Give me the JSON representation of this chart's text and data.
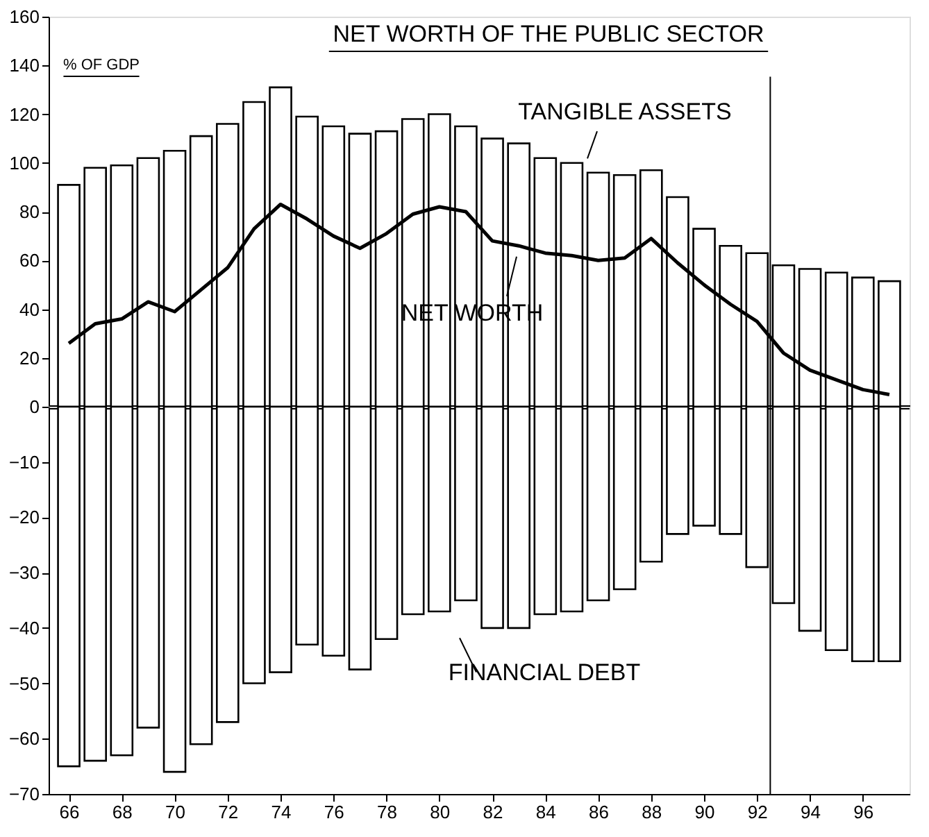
{
  "chart_data": [
    {
      "type": "bar",
      "title": "NET WORTH OF THE PUBLIC SECTOR",
      "ylabel": "% OF GDP",
      "x": [
        66,
        67,
        68,
        69,
        70,
        71,
        72,
        73,
        74,
        75,
        76,
        77,
        78,
        79,
        80,
        81,
        82,
        83,
        84,
        85,
        86,
        87,
        88,
        89,
        90,
        91,
        92,
        93,
        94,
        95,
        96,
        97
      ],
      "series": [
        {
          "name": "TANGIBLE ASSETS",
          "color": "#ffffff",
          "values": [
            91,
            98,
            99,
            102,
            105,
            111,
            116,
            125,
            131,
            119,
            115,
            112,
            113,
            118,
            120,
            115,
            110,
            108,
            102,
            100,
            96,
            95,
            97,
            86,
            73,
            66,
            63,
            58,
            56.5,
            55,
            53,
            51.5
          ]
        },
        {
          "name": "NET WORTH",
          "type": "line",
          "color": "#000000",
          "values": [
            26,
            34,
            36,
            43,
            39,
            48,
            57,
            73,
            83,
            77,
            70,
            65,
            71,
            79,
            82,
            80,
            68,
            66,
            63,
            62,
            60,
            61,
            69,
            59,
            50,
            42,
            35,
            22,
            15,
            11,
            7,
            5
          ]
        }
      ],
      "xlim": [
        65.5,
        97.5
      ],
      "ylim": [
        0,
        160
      ],
      "yticks": [
        160,
        140,
        120,
        100,
        80,
        60,
        40,
        20,
        0
      ],
      "ref_lines": [
        {
          "axis": "x",
          "value": 92.5
        }
      ],
      "tick_labels": "y",
      "grid": false
    },
    {
      "type": "bar",
      "x": [
        66,
        67,
        68,
        69,
        70,
        71,
        72,
        73,
        74,
        75,
        76,
        77,
        78,
        79,
        80,
        81,
        82,
        83,
        84,
        85,
        86,
        87,
        88,
        89,
        90,
        91,
        92,
        93,
        94,
        95,
        96,
        97
      ],
      "series": [
        {
          "name": "FINANCIAL DEBT",
          "color": "#ffffff",
          "values": [
            -65,
            -64,
            -63,
            -58,
            -66,
            -61,
            -57,
            -50,
            -48,
            -43,
            -45,
            -47.5,
            -42,
            -37.5,
            -37,
            -35,
            -40,
            -40,
            -37.5,
            -37,
            -35,
            -33,
            -28,
            -23,
            -21.5,
            -23,
            -29,
            -35.5,
            -40.5,
            -44,
            -46,
            -46
          ]
        }
      ],
      "xlim": [
        65.5,
        97.5
      ],
      "xticks": [
        66,
        68,
        70,
        72,
        74,
        76,
        78,
        80,
        82,
        84,
        86,
        88,
        90,
        92,
        94,
        96
      ],
      "ylim": [
        -70,
        0
      ],
      "yticks": [
        -10,
        -20,
        -30,
        -40,
        -50,
        -60,
        -70
      ],
      "ref_lines": [
        {
          "axis": "x",
          "value": 92.5
        }
      ],
      "grid": false
    }
  ]
}
